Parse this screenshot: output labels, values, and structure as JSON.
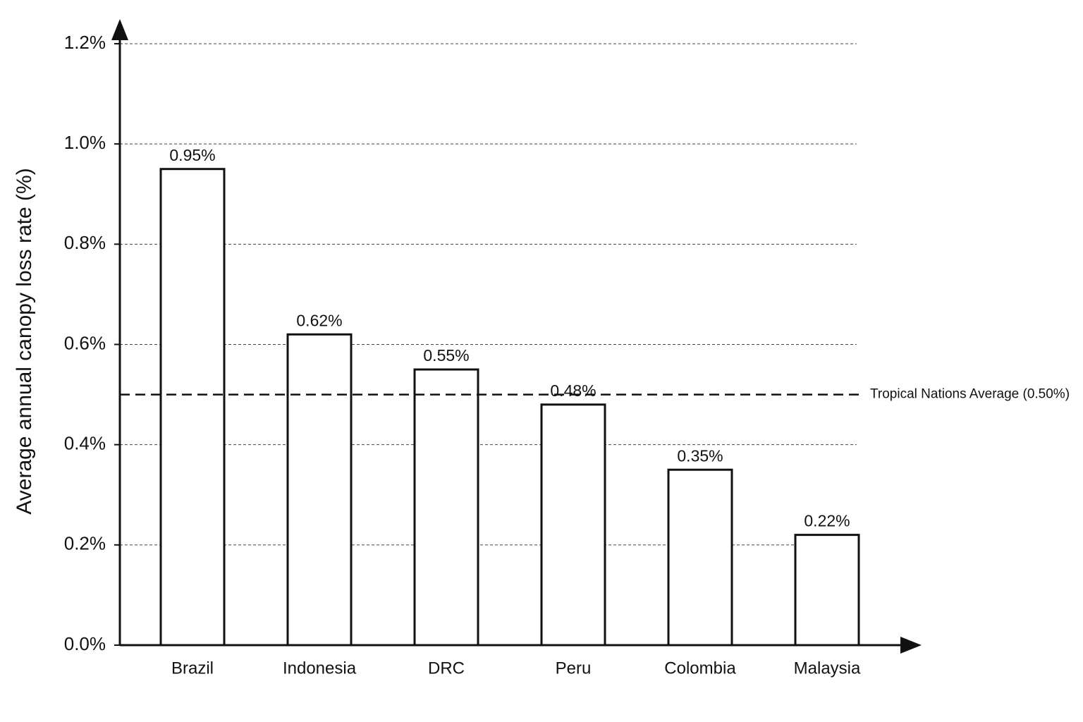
{
  "chart_data": {
    "type": "bar",
    "y_label": "Average annual canopy loss rate (%)",
    "categories": [
      "Brazil",
      "Indonesia",
      "DRC",
      "Peru",
      "Colombia",
      "Malaysia"
    ],
    "values": [
      0.95,
      0.62,
      0.55,
      0.48,
      0.35,
      0.22
    ],
    "value_labels": [
      "0.95%",
      "0.62%",
      "0.55%",
      "0.48%",
      "0.35%",
      "0.22%"
    ],
    "color": "#ffffff",
    "ylim": [
      0,
      1.2
    ],
    "yticks": [
      {
        "value": 0,
        "label": "0.0%"
      },
      {
        "value": 0.2,
        "label": "0.2%"
      },
      {
        "value": 0.4,
        "label": "0.4%"
      },
      {
        "value": 0.6,
        "label": "0.6%"
      },
      {
        "value": 0.8,
        "label": "0.8%"
      },
      {
        "value": 1.0,
        "label": "1.0%"
      },
      {
        "value": 1.2,
        "label": "1.2%"
      }
    ],
    "grid": true,
    "reference_line": {
      "value": 0.5,
      "label": "Tropical Nations Average (0.50%)"
    }
  }
}
